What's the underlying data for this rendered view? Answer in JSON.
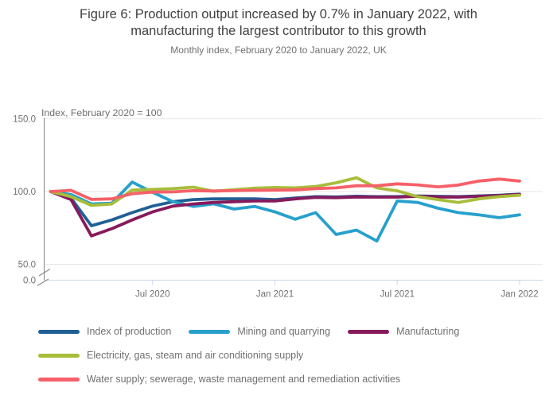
{
  "header": {
    "title": "Figure 6: Production output increased by 0.7% in January 2022, with manufacturing the largest contributor to this growth",
    "subtitle": "Monthly index, February 2020 to January 2022, UK"
  },
  "chart_data": {
    "type": "line",
    "y_axis_title": "Index, February 2020 = 100",
    "ylim": [
      0,
      150
    ],
    "axis_break_between": [
      0,
      50
    ],
    "grid": "horizontal",
    "y_ticks": [
      {
        "label": "150.0",
        "value": 150
      },
      {
        "label": "100.0",
        "value": 100
      },
      {
        "label": "50.0",
        "value": 50
      },
      {
        "label": "0.0",
        "value": 0
      }
    ],
    "x_ticks": [
      {
        "label": "Jul 2020",
        "index": 5
      },
      {
        "label": "Jan 2021",
        "index": 11
      },
      {
        "label": "Jul 2021",
        "index": 17
      },
      {
        "label": "Jan 2022",
        "index": 23
      }
    ],
    "x": [
      "Feb 2020",
      "Mar 2020",
      "Apr 2020",
      "May 2020",
      "Jun 2020",
      "Jul 2020",
      "Aug 2020",
      "Sep 2020",
      "Oct 2020",
      "Nov 2020",
      "Dec 2020",
      "Jan 2021",
      "Feb 2021",
      "Mar 2021",
      "Apr 2021",
      "May 2021",
      "Jun 2021",
      "Jul 2021",
      "Aug 2021",
      "Sep 2021",
      "Oct 2021",
      "Nov 2021",
      "Dec 2021",
      "Jan 2022"
    ],
    "legend_position": "bottom",
    "series": [
      {
        "name": "Index of production",
        "color": "#206095",
        "values": [
          100,
          95.5,
          76.5,
          80.5,
          85.5,
          90,
          93,
          94.5,
          95,
          95,
          95,
          94.5,
          95.5,
          96.5,
          96.3,
          96.8,
          96.5,
          96.5,
          97,
          96.7,
          96.5,
          97,
          97.5,
          98.2
        ]
      },
      {
        "name": "Mining and quarrying",
        "color": "#27a0cc",
        "values": [
          100,
          98,
          91.5,
          92,
          106.5,
          99.5,
          93,
          89.8,
          91.6,
          88,
          89.8,
          86,
          81,
          85.5,
          70.5,
          73.5,
          66,
          93.5,
          92.5,
          88.5,
          85.5,
          84,
          82,
          84
        ]
      },
      {
        "name": "Manufacturing",
        "color": "#871a5b",
        "values": [
          100,
          94.5,
          69.5,
          74.5,
          80.5,
          86,
          90,
          91.5,
          92.5,
          93,
          93.5,
          93.5,
          95,
          96,
          95.8,
          96.3,
          96.2,
          96.2,
          96.7,
          96.3,
          96.2,
          96.7,
          97.2,
          98
        ]
      },
      {
        "name": "Electricity, gas, steam and air conditioning supply",
        "color": "#a8bd3a",
        "values": [
          100,
          96.5,
          90.5,
          91.5,
          101,
          101.5,
          102,
          103,
          100.2,
          101.3,
          102.3,
          102.8,
          102.5,
          103.5,
          106,
          109.5,
          102.5,
          100.5,
          96.5,
          94.5,
          92.5,
          95,
          96.5,
          97.5
        ]
      },
      {
        "name": "Water supply; sewerage, waste management and remediation activities",
        "color": "#f66068",
        "values": [
          100,
          100.8,
          94.6,
          95,
          98.5,
          99.6,
          99.8,
          100.6,
          100.4,
          100.6,
          100.8,
          101,
          101.2,
          102,
          102.5,
          104,
          104,
          105.3,
          104.6,
          103.2,
          104.5,
          107.2,
          108.6,
          107.2
        ]
      }
    ]
  }
}
